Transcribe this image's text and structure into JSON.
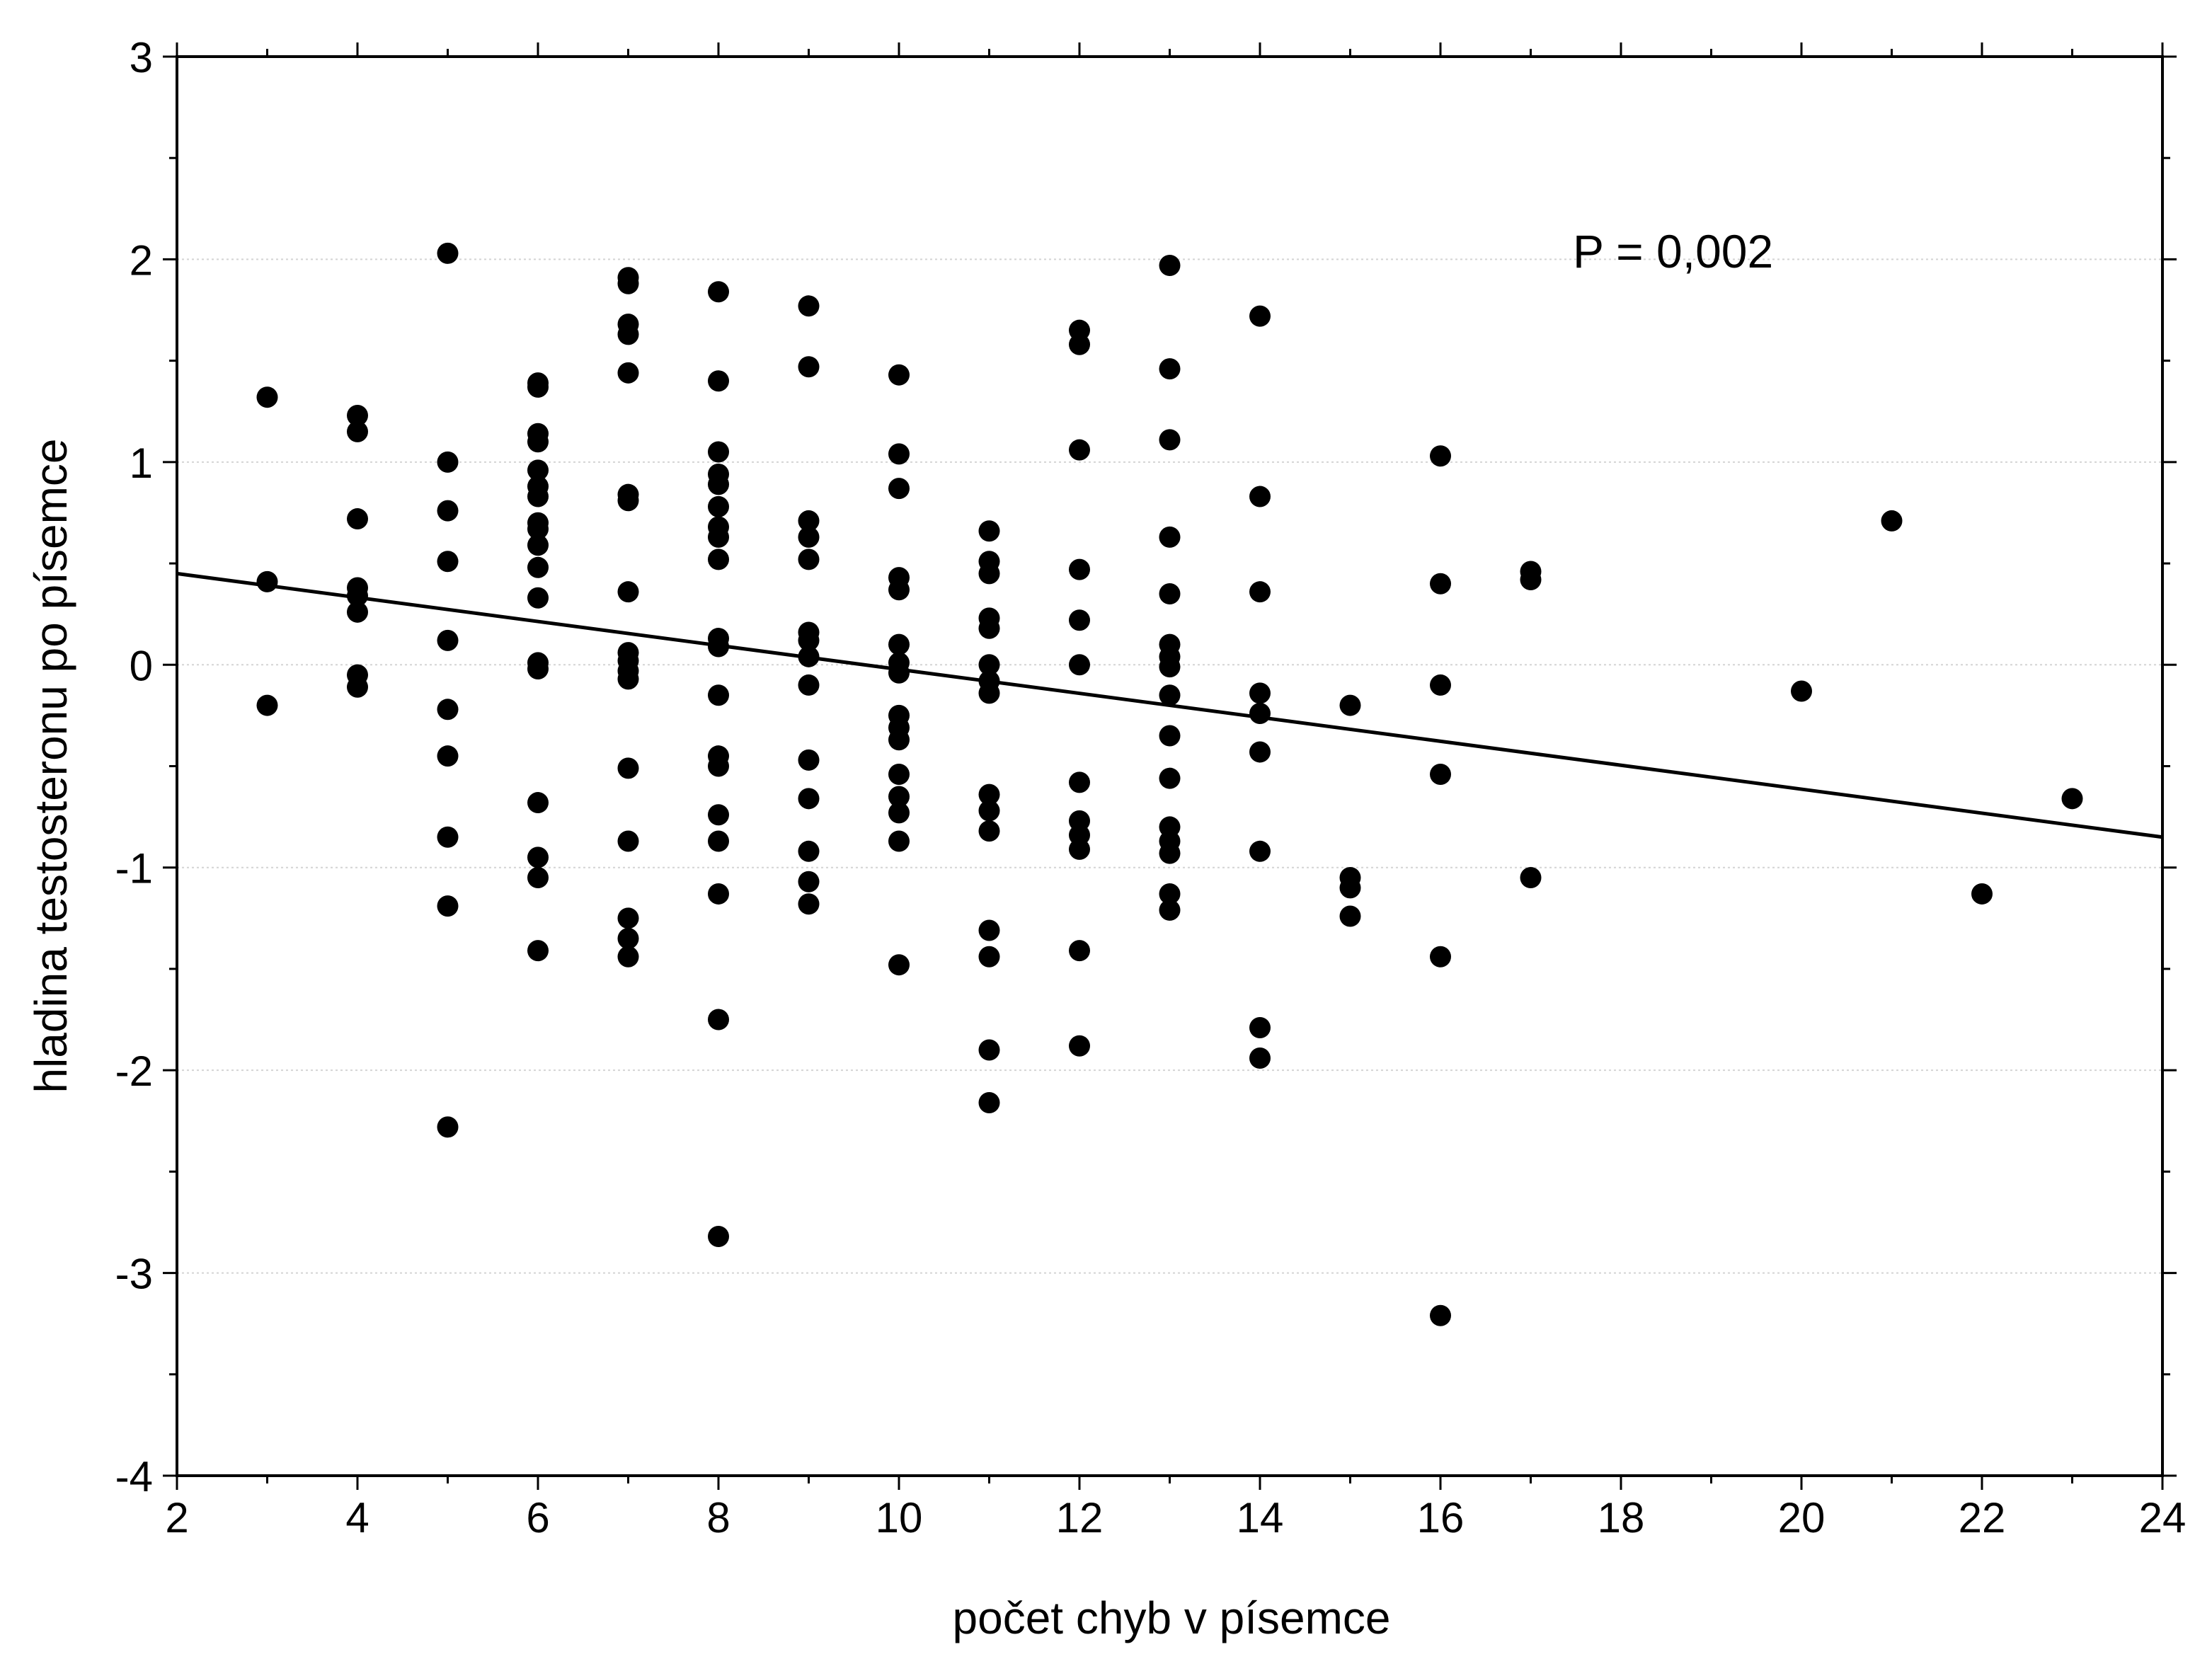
{
  "chart_data": {
    "type": "scatter",
    "title": "",
    "xlabel": "počet chyb v písemce",
    "ylabel": "hladina testosteronu po písemce",
    "xlim": [
      2,
      24
    ],
    "ylim": [
      -4,
      3
    ],
    "xticks": [
      2,
      4,
      6,
      8,
      10,
      12,
      14,
      16,
      18,
      20,
      22,
      24
    ],
    "yticks": [
      -4,
      -3,
      -2,
      -1,
      0,
      1,
      2,
      3
    ],
    "xtick_labels": [
      "2",
      "4",
      "6",
      "8",
      "10",
      "12",
      "14",
      "16",
      "18",
      "20",
      "22",
      "24"
    ],
    "ytick_labels": [
      "-4",
      "-3",
      "-2",
      "-1",
      "0",
      "1",
      "2",
      "3"
    ],
    "grid": true,
    "annotation": "P = 0,002",
    "regression_line": {
      "x": [
        2,
        24
      ],
      "y": [
        0.45,
        -0.85
      ]
    },
    "points": [
      [
        3,
        1.32
      ],
      [
        3,
        0.41
      ],
      [
        3,
        -0.2
      ],
      [
        4,
        1.23
      ],
      [
        4,
        1.15
      ],
      [
        4,
        0.72
      ],
      [
        4,
        0.38
      ],
      [
        4,
        0.34
      ],
      [
        4,
        0.26
      ],
      [
        4,
        -0.05
      ],
      [
        4,
        -0.11
      ],
      [
        5,
        2.03
      ],
      [
        5,
        1.0
      ],
      [
        5,
        0.76
      ],
      [
        5,
        0.51
      ],
      [
        5,
        0.12
      ],
      [
        5,
        -0.22
      ],
      [
        5,
        -0.45
      ],
      [
        5,
        -0.85
      ],
      [
        5,
        -1.19
      ],
      [
        5,
        -2.28
      ],
      [
        6,
        1.39
      ],
      [
        6,
        1.37
      ],
      [
        6,
        1.14
      ],
      [
        6,
        1.1
      ],
      [
        6,
        0.96
      ],
      [
        6,
        0.88
      ],
      [
        6,
        0.83
      ],
      [
        6,
        0.7
      ],
      [
        6,
        0.67
      ],
      [
        6,
        0.59
      ],
      [
        6,
        0.48
      ],
      [
        6,
        0.33
      ],
      [
        6,
        0.01
      ],
      [
        6,
        -0.02
      ],
      [
        6,
        -0.68
      ],
      [
        6,
        -0.95
      ],
      [
        6,
        -1.05
      ],
      [
        6,
        -1.41
      ],
      [
        7,
        1.91
      ],
      [
        7,
        1.88
      ],
      [
        7,
        1.68
      ],
      [
        7,
        1.63
      ],
      [
        7,
        1.44
      ],
      [
        7,
        0.84
      ],
      [
        7,
        0.81
      ],
      [
        7,
        0.36
      ],
      [
        7,
        0.06
      ],
      [
        7,
        0.02
      ],
      [
        7,
        -0.03
      ],
      [
        7,
        -0.07
      ],
      [
        7,
        -0.51
      ],
      [
        7,
        -0.87
      ],
      [
        7,
        -1.25
      ],
      [
        7,
        -1.35
      ],
      [
        7,
        -1.44
      ],
      [
        8,
        1.84
      ],
      [
        8,
        1.4
      ],
      [
        8,
        1.05
      ],
      [
        8,
        0.94
      ],
      [
        8,
        0.89
      ],
      [
        8,
        0.78
      ],
      [
        8,
        0.68
      ],
      [
        8,
        0.63
      ],
      [
        8,
        0.52
      ],
      [
        8,
        0.13
      ],
      [
        8,
        0.09
      ],
      [
        8,
        -0.15
      ],
      [
        8,
        -0.45
      ],
      [
        8,
        -0.5
      ],
      [
        8,
        -0.74
      ],
      [
        8,
        -0.87
      ],
      [
        8,
        -1.13
      ],
      [
        8,
        -1.75
      ],
      [
        8,
        -2.82
      ],
      [
        9,
        1.77
      ],
      [
        9,
        1.47
      ],
      [
        9,
        0.71
      ],
      [
        9,
        0.63
      ],
      [
        9,
        0.52
      ],
      [
        9,
        0.16
      ],
      [
        9,
        0.12
      ],
      [
        9,
        0.04
      ],
      [
        9,
        -0.1
      ],
      [
        9,
        -0.47
      ],
      [
        9,
        -0.66
      ],
      [
        9,
        -0.92
      ],
      [
        9,
        -1.07
      ],
      [
        9,
        -1.18
      ],
      [
        10,
        1.43
      ],
      [
        10,
        1.04
      ],
      [
        10,
        0.87
      ],
      [
        10,
        0.43
      ],
      [
        10,
        0.37
      ],
      [
        10,
        0.1
      ],
      [
        10,
        0.01
      ],
      [
        10,
        -0.04
      ],
      [
        10,
        -0.25
      ],
      [
        10,
        -0.31
      ],
      [
        10,
        -0.37
      ],
      [
        10,
        -0.54
      ],
      [
        10,
        -0.65
      ],
      [
        10,
        -0.73
      ],
      [
        10,
        -0.87
      ],
      [
        10,
        -1.48
      ],
      [
        11,
        0.66
      ],
      [
        11,
        0.51
      ],
      [
        11,
        0.45
      ],
      [
        11,
        0.23
      ],
      [
        11,
        0.18
      ],
      [
        11,
        0.0
      ],
      [
        11,
        -0.08
      ],
      [
        11,
        -0.14
      ],
      [
        11,
        -0.64
      ],
      [
        11,
        -0.72
      ],
      [
        11,
        -0.82
      ],
      [
        11,
        -1.31
      ],
      [
        11,
        -1.44
      ],
      [
        11,
        -1.9
      ],
      [
        11,
        -2.16
      ],
      [
        12,
        1.65
      ],
      [
        12,
        1.58
      ],
      [
        12,
        1.06
      ],
      [
        12,
        0.47
      ],
      [
        12,
        0.22
      ],
      [
        12,
        0.0
      ],
      [
        12,
        -0.58
      ],
      [
        12,
        -0.77
      ],
      [
        12,
        -0.84
      ],
      [
        12,
        -0.91
      ],
      [
        12,
        -1.41
      ],
      [
        12,
        -1.88
      ],
      [
        13,
        1.97
      ],
      [
        13,
        1.46
      ],
      [
        13,
        1.11
      ],
      [
        13,
        0.63
      ],
      [
        13,
        0.35
      ],
      [
        13,
        0.1
      ],
      [
        13,
        0.04
      ],
      [
        13,
        -0.01
      ],
      [
        13,
        -0.15
      ],
      [
        13,
        -0.35
      ],
      [
        13,
        -0.56
      ],
      [
        13,
        -0.8
      ],
      [
        13,
        -0.87
      ],
      [
        13,
        -0.93
      ],
      [
        13,
        -1.13
      ],
      [
        13,
        -1.21
      ],
      [
        14,
        1.72
      ],
      [
        14,
        0.83
      ],
      [
        14,
        0.36
      ],
      [
        14,
        -0.14
      ],
      [
        14,
        -0.24
      ],
      [
        14,
        -0.43
      ],
      [
        14,
        -0.92
      ],
      [
        14,
        -1.79
      ],
      [
        14,
        -1.94
      ],
      [
        15,
        -0.2
      ],
      [
        15,
        -1.05
      ],
      [
        15,
        -1.1
      ],
      [
        15,
        -1.24
      ],
      [
        16,
        1.03
      ],
      [
        16,
        0.4
      ],
      [
        16,
        -0.1
      ],
      [
        16,
        -0.54
      ],
      [
        16,
        -1.44
      ],
      [
        16,
        -3.21
      ],
      [
        17,
        0.46
      ],
      [
        17,
        0.42
      ],
      [
        17,
        -1.05
      ],
      [
        20,
        -0.13
      ],
      [
        21,
        0.71
      ],
      [
        22,
        -1.13
      ],
      [
        23,
        -0.66
      ]
    ]
  }
}
